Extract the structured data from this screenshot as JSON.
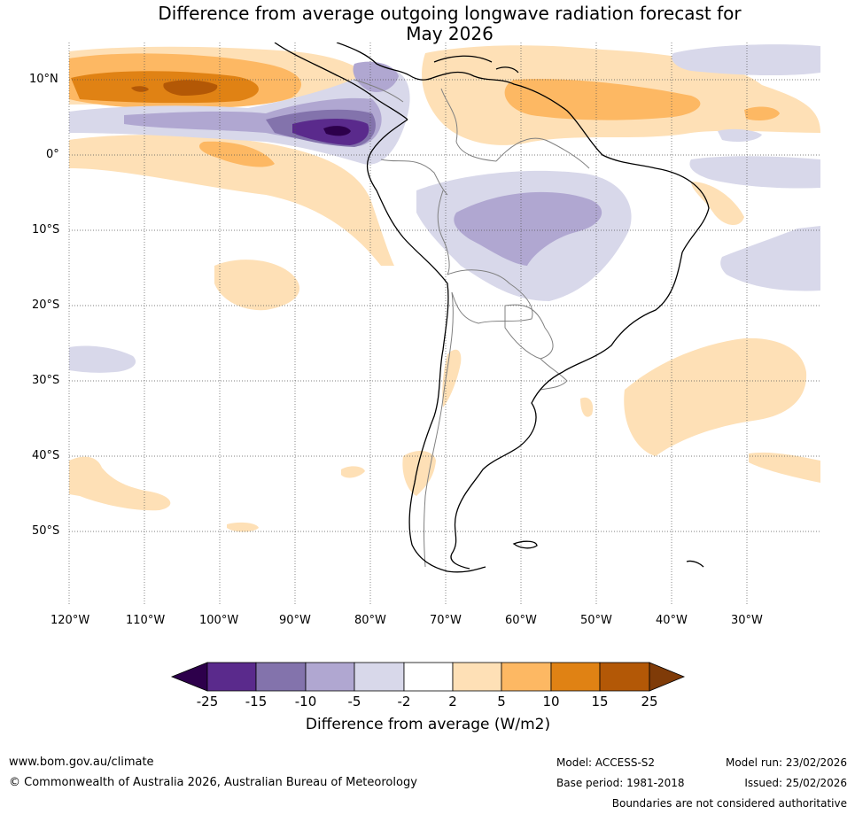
{
  "title_line1": "Difference from average outgoing longwave radiation forecast for",
  "title_line2": "May 2026",
  "lat_labels": [
    "10°N",
    "0°",
    "10°S",
    "20°S",
    "30°S",
    "40°S",
    "50°S"
  ],
  "lon_labels": [
    "120°W",
    "110°W",
    "100°W",
    "90°W",
    "80°W",
    "70°W",
    "60°W",
    "50°W",
    "40°W",
    "30°W"
  ],
  "colorbar": {
    "ticks": [
      "-25",
      "-15",
      "-10",
      "-5",
      "-2",
      "2",
      "5",
      "10",
      "15",
      "25"
    ],
    "colors": [
      "#2d004b",
      "#5a2a8c",
      "#8373ac",
      "#b0a7d1",
      "#d8d8ea",
      "#ffffff",
      "#fee0b6",
      "#fdb863",
      "#e08214",
      "#b35806",
      "#7f3b08"
    ],
    "title": "Difference from average (W/m2)"
  },
  "footer": {
    "website": "www.bom.gov.au/climate",
    "copyright": "© Commonwealth of Australia 2026, Australian Bureau of Meteorology",
    "model": "Model: ACCESS-S2",
    "model_run": "Model run: 23/02/2026",
    "base_period": "Base period: 1981-2018",
    "issued": "Issued: 25/02/2026",
    "disclaimer": "Boundaries are not considered authoritative"
  }
}
